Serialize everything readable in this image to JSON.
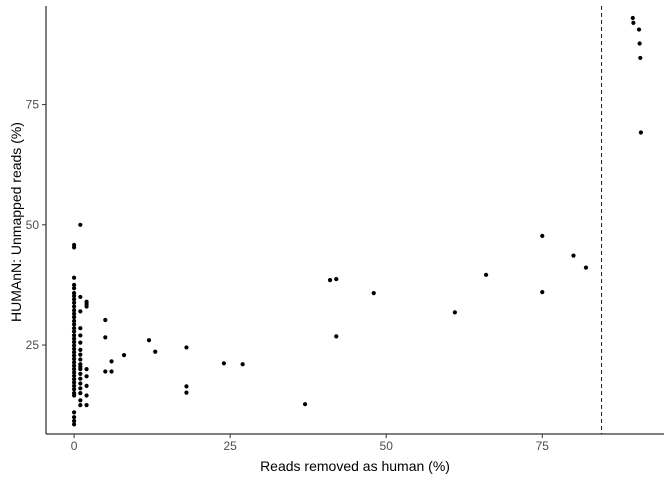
{
  "chart_data": {
    "type": "scatter",
    "title": "",
    "xlabel": "Reads removed as human (%)",
    "ylabel": "HUMAnN: Unmapped reads (%)",
    "xlim": [
      -4.5,
      94.5
    ],
    "ylim": [
      6.5,
      95.5
    ],
    "xticks": [
      0,
      25,
      50,
      75
    ],
    "yticks": [
      25,
      50,
      75
    ],
    "grid": false,
    "legend": "none",
    "point_color": "#000000",
    "reference_line": {
      "orientation": "vertical",
      "x": 84.5,
      "style": "dashed",
      "color": "#1a1a1a"
    },
    "points": [
      [
        0,
        45.8
      ],
      [
        0,
        45.3
      ],
      [
        0,
        39.0
      ],
      [
        0,
        37.5
      ],
      [
        0,
        36.8
      ],
      [
        0,
        35.8
      ],
      [
        0,
        35.2
      ],
      [
        0,
        34.5
      ],
      [
        0,
        33.8
      ],
      [
        0,
        33.0
      ],
      [
        0,
        32.2
      ],
      [
        0,
        31.5
      ],
      [
        0,
        30.8
      ],
      [
        0,
        30.0
      ],
      [
        0,
        29.3
      ],
      [
        0,
        28.5
      ],
      [
        0,
        27.8
      ],
      [
        0,
        27.0
      ],
      [
        0,
        26.3
      ],
      [
        0,
        25.6
      ],
      [
        0,
        24.9
      ],
      [
        0,
        24.2
      ],
      [
        0,
        23.5
      ],
      [
        0,
        22.8
      ],
      [
        0,
        22.1
      ],
      [
        0,
        21.4
      ],
      [
        0,
        20.7
      ],
      [
        0,
        20.0
      ],
      [
        0,
        19.3
      ],
      [
        0,
        18.6
      ],
      [
        0,
        17.9
      ],
      [
        0,
        17.2
      ],
      [
        0,
        16.5
      ],
      [
        0,
        15.8
      ],
      [
        0,
        15.0
      ],
      [
        0,
        14.5
      ],
      [
        0,
        11.0
      ],
      [
        0,
        10.0
      ],
      [
        0,
        9.2
      ],
      [
        0,
        8.5
      ],
      [
        1,
        50.0
      ],
      [
        1,
        35.0
      ],
      [
        1,
        32.0
      ],
      [
        1,
        28.5
      ],
      [
        1,
        27.0
      ],
      [
        1,
        25.5
      ],
      [
        1,
        24.0
      ],
      [
        1,
        23.0
      ],
      [
        1,
        22.0
      ],
      [
        1,
        21.0
      ],
      [
        1,
        20.5
      ],
      [
        1,
        20.0
      ],
      [
        1,
        19.0
      ],
      [
        1,
        18.0
      ],
      [
        1,
        17.0
      ],
      [
        1,
        16.0
      ],
      [
        1,
        15.0
      ],
      [
        1,
        13.5
      ],
      [
        1,
        12.5
      ],
      [
        2,
        34.0
      ],
      [
        2,
        33.5
      ],
      [
        2,
        33.0
      ],
      [
        2,
        20.0
      ],
      [
        2,
        18.5
      ],
      [
        2,
        16.5
      ],
      [
        2,
        14.5
      ],
      [
        2,
        12.5
      ],
      [
        5,
        30.2
      ],
      [
        5,
        26.6
      ],
      [
        5,
        19.5
      ],
      [
        6,
        21.6
      ],
      [
        6,
        19.5
      ],
      [
        8,
        22.9
      ],
      [
        12,
        26.0
      ],
      [
        13,
        23.6
      ],
      [
        18,
        24.5
      ],
      [
        18,
        16.4
      ],
      [
        18,
        15.1
      ],
      [
        24,
        21.2
      ],
      [
        27,
        21.0
      ],
      [
        37,
        12.7
      ],
      [
        41,
        38.5
      ],
      [
        42,
        38.7
      ],
      [
        42,
        26.8
      ],
      [
        48,
        35.8
      ],
      [
        61,
        31.8
      ],
      [
        66,
        39.6
      ],
      [
        75,
        47.7
      ],
      [
        75,
        36.0
      ],
      [
        80,
        43.6
      ],
      [
        82,
        41.1
      ],
      [
        89.5,
        93.0
      ],
      [
        89.6,
        92.0
      ],
      [
        90.5,
        90.6
      ],
      [
        90.6,
        87.7
      ],
      [
        90.7,
        84.7
      ],
      [
        90.8,
        69.2
      ]
    ]
  }
}
